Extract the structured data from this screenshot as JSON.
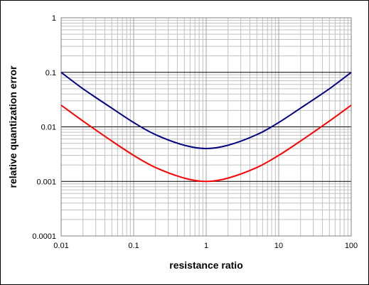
{
  "chart_data": {
    "type": "line",
    "title": "",
    "xlabel": "resistance ratio",
    "ylabel": "relative quantization error",
    "x_scale": "log",
    "y_scale": "log",
    "xlim": [
      0.01,
      100
    ],
    "ylim": [
      0.0001,
      1
    ],
    "x_ticks": [
      "0.01",
      "0.1",
      "1",
      "10",
      "100"
    ],
    "y_ticks": [
      "1",
      "0.1",
      "0.01",
      "0.001",
      "0.0001"
    ],
    "grid": true,
    "legend": "none",
    "x": [
      0.01,
      0.02,
      0.05,
      0.1,
      0.2,
      0.5,
      1,
      2,
      5,
      10,
      20,
      50,
      100
    ],
    "series": [
      {
        "color": "#000080",
        "values": [
          0.1,
          0.05,
          0.022,
          0.012,
          0.0072,
          0.0046,
          0.004,
          0.0046,
          0.0072,
          0.012,
          0.022,
          0.05,
          0.1
        ]
      },
      {
        "color": "#ff0000",
        "values": [
          0.025,
          0.0128,
          0.0055,
          0.003,
          0.0018,
          0.00115,
          0.001,
          0.00115,
          0.0018,
          0.003,
          0.0055,
          0.0128,
          0.025
        ]
      }
    ],
    "colors": {
      "major_grid": "#000000",
      "minor_grid": "#c0c0c0",
      "background": "#ffffff"
    }
  }
}
